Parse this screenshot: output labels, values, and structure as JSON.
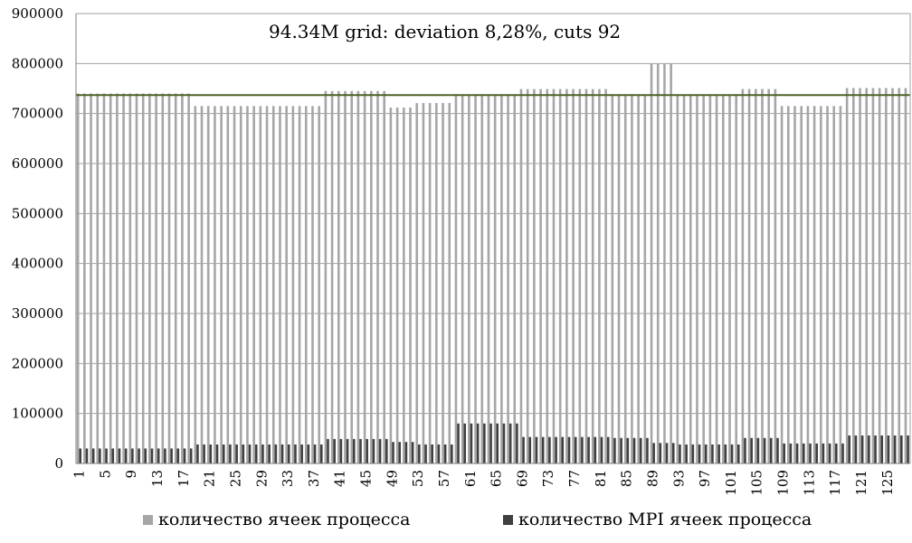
{
  "chart_data": {
    "type": "bar",
    "title": "94.34M grid: deviation 8,28%, cuts 92",
    "xlabel": "",
    "ylabel": "",
    "ylim": [
      0,
      900000
    ],
    "y_ticks": [
      0,
      100000,
      200000,
      300000,
      400000,
      500000,
      600000,
      700000,
      800000,
      900000
    ],
    "x_tick_labels": [
      "1",
      "5",
      "9",
      "13",
      "17",
      "21",
      "25",
      "29",
      "33",
      "37",
      "41",
      "45",
      "49",
      "53",
      "57",
      "61",
      "65",
      "69",
      "73",
      "77",
      "81",
      "85",
      "89",
      "93",
      "97",
      "101",
      "105",
      "109",
      "113",
      "117",
      "121",
      "125"
    ],
    "x_tick_positions": [
      1,
      5,
      9,
      13,
      17,
      21,
      25,
      29,
      33,
      37,
      41,
      45,
      49,
      53,
      57,
      61,
      65,
      69,
      73,
      77,
      81,
      85,
      89,
      93,
      97,
      101,
      105,
      109,
      113,
      117,
      121,
      125
    ],
    "categories_count": 128,
    "grid": true,
    "legend_position": "bottom",
    "average_line": {
      "value": 737000,
      "color": "#4f6228"
    },
    "series": [
      {
        "name": "количество ячеек процесса",
        "color": "#a6a6a6",
        "segments": [
          {
            "count": 18,
            "value": 740000
          },
          {
            "count": 20,
            "value": 715000
          },
          {
            "count": 10,
            "value": 745000
          },
          {
            "count": 4,
            "value": 712000
          },
          {
            "count": 6,
            "value": 721000
          },
          {
            "count": 10,
            "value": 737000
          },
          {
            "count": 14,
            "value": 749000
          },
          {
            "count": 6,
            "value": 737000
          },
          {
            "count": 4,
            "value": 800000
          },
          {
            "count": 10,
            "value": 737000
          },
          {
            "count": 6,
            "value": 749000
          },
          {
            "count": 10,
            "value": 715000
          },
          {
            "count": 10,
            "value": 751000
          }
        ]
      },
      {
        "name": "количество MPI ячеек процесса",
        "color": "#404040",
        "segments": [
          {
            "count": 18,
            "value": 30000
          },
          {
            "count": 20,
            "value": 38000
          },
          {
            "count": 10,
            "value": 49000
          },
          {
            "count": 4,
            "value": 43000
          },
          {
            "count": 6,
            "value": 38000
          },
          {
            "count": 10,
            "value": 80000
          },
          {
            "count": 14,
            "value": 53000
          },
          {
            "count": 6,
            "value": 51000
          },
          {
            "count": 4,
            "value": 41000
          },
          {
            "count": 10,
            "value": 38000
          },
          {
            "count": 6,
            "value": 51000
          },
          {
            "count": 10,
            "value": 40000
          },
          {
            "count": 10,
            "value": 56000
          }
        ]
      }
    ]
  }
}
